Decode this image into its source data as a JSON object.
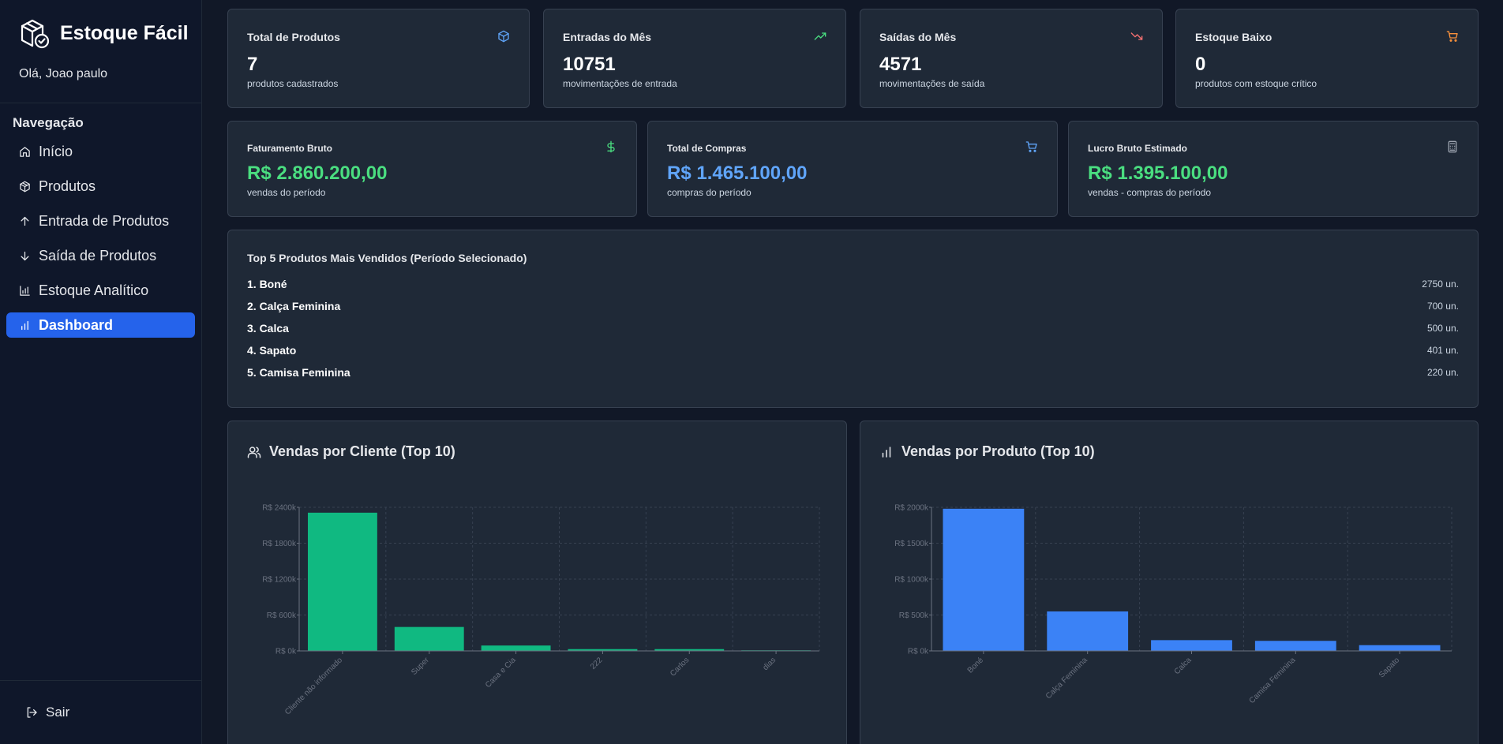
{
  "app": {
    "name": "Estoque Fácil",
    "greeting": "Olá, Joao paulo"
  },
  "sidebar": {
    "nav_title": "Navegação",
    "items": [
      {
        "label": "Início",
        "icon": "home-icon",
        "active": false
      },
      {
        "label": "Produtos",
        "icon": "package-icon",
        "active": false
      },
      {
        "label": "Entrada de Produtos",
        "icon": "arrow-up-icon",
        "active": false
      },
      {
        "label": "Saída de Produtos",
        "icon": "arrow-down-icon",
        "active": false
      },
      {
        "label": "Estoque Analítico",
        "icon": "bar-chart-icon",
        "active": false
      },
      {
        "label": "Dashboard",
        "icon": "bar-chart-small-icon",
        "active": true
      }
    ],
    "logout": "Sair"
  },
  "stats": [
    {
      "title": "Total de Produtos",
      "value": "7",
      "sub": "produtos cadastrados",
      "icon": "package-icon",
      "color": "#60a5fa"
    },
    {
      "title": "Entradas do Mês",
      "value": "10751",
      "sub": "movimentações de entrada",
      "icon": "trending-up-icon",
      "color": "#4ade80"
    },
    {
      "title": "Saídas do Mês",
      "value": "4571",
      "sub": "movimentações de saída",
      "icon": "trending-down-icon",
      "color": "#f87171"
    },
    {
      "title": "Estoque Baixo",
      "value": "0",
      "sub": "produtos com estoque crítico",
      "icon": "shopping-cart-icon",
      "color": "#fb923c"
    }
  ],
  "finance": [
    {
      "title": "Faturamento Bruto",
      "value": "R$ 2.860.200,00",
      "sub": "vendas do período",
      "icon": "dollar-icon",
      "color": "#4ade80",
      "icon_color": "#4ade80"
    },
    {
      "title": "Total de Compras",
      "value": "R$ 1.465.100,00",
      "sub": "compras do período",
      "icon": "shopping-cart-icon",
      "color": "#60a5fa",
      "icon_color": "#60a5fa"
    },
    {
      "title": "Lucro Bruto Estimado",
      "value": "R$ 1.395.100,00",
      "sub": "vendas - compras do período",
      "icon": "calculator-icon",
      "color": "#4ade80",
      "icon_color": "#9ca3af"
    }
  ],
  "top_products": {
    "title": "Top 5 Produtos Mais Vendidos (Período Selecionado)",
    "items": [
      {
        "name": "1. Boné",
        "qty": "2750 un."
      },
      {
        "name": "2. Calça Feminina",
        "qty": "700 un."
      },
      {
        "name": "3. Calca",
        "qty": "500 un."
      },
      {
        "name": "4. Sapato",
        "qty": "401 un."
      },
      {
        "name": "5. Camisa Feminina",
        "qty": "220 un."
      }
    ]
  },
  "charts": {
    "clients_title": "Vendas por Cliente (Top 10)",
    "products_title": "Vendas por Produto (Top 10)"
  },
  "chart_data": [
    {
      "type": "bar",
      "title": "Vendas por Cliente (Top 10)",
      "categories": [
        "Cliente não informado",
        "Super",
        "Casa e Cia",
        "222",
        "Carlos",
        "dias"
      ],
      "values": [
        2310000,
        400000,
        90000,
        30000,
        30000,
        10000
      ],
      "ylim": [
        0,
        2400000
      ],
      "yticks": [
        0,
        600000,
        1200000,
        1800000,
        2400000
      ],
      "ytick_labels": [
        "R$ 0k",
        "R$ 600k",
        "R$ 1200k",
        "R$ 1800k",
        "R$ 2400k"
      ],
      "color": "#10b981",
      "grid": true
    },
    {
      "type": "bar",
      "title": "Vendas por Produto (Top 10)",
      "categories": [
        "Boné",
        "Calça Feminina",
        "Calca",
        "Camisa Feminina",
        "Sapato"
      ],
      "values": [
        1980000,
        550000,
        150000,
        140000,
        80000
      ],
      "ylim": [
        0,
        2000000
      ],
      "yticks": [
        0,
        500000,
        1000000,
        1500000,
        2000000
      ],
      "ytick_labels": [
        "R$ 0k",
        "R$ 500k",
        "R$ 1000k",
        "R$ 1500k",
        "R$ 2000k"
      ],
      "color": "#3b82f6",
      "grid": true
    }
  ]
}
